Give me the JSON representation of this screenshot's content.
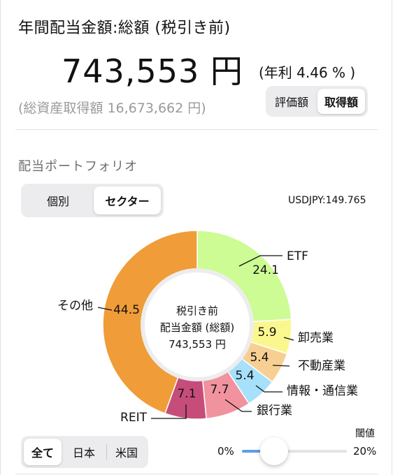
{
  "summary": {
    "title": "年間配当金額:総額 (税引き前)",
    "amount": "743,553 円",
    "yield": "(年利 4.46 % )",
    "total_assets": "(総資産取得額 16,673,662 円)"
  },
  "basis_toggle": {
    "options": [
      "評価額",
      "取得額"
    ],
    "selected": "取得額"
  },
  "portfolio": {
    "heading": "配当ポートフォリオ",
    "view_toggle": {
      "options": [
        "個別",
        "セクター"
      ],
      "selected": "セクター"
    },
    "fx_rate": "USDJPY:149.765",
    "center_label": {
      "line1": "税引き前",
      "line2": "配当金額 (総額)",
      "line3": "743,553 円"
    }
  },
  "chart_data": {
    "type": "pie",
    "donut": true,
    "unit": "%",
    "center_total": "743,553 円",
    "slices": [
      {
        "label": "ETF",
        "value": 24.1,
        "color": "#cdfb94"
      },
      {
        "label": "卸売業",
        "value": 5.9,
        "color": "#fbf78f"
      },
      {
        "label": "不動産業",
        "value": 5.4,
        "color": "#f7cf92"
      },
      {
        "label": "情報・通信業",
        "value": 5.4,
        "color": "#a6e0fb"
      },
      {
        "label": "銀行業",
        "value": 7.7,
        "color": "#f1939e"
      },
      {
        "label": "REIT",
        "value": 7.1,
        "color": "#c64d7a"
      },
      {
        "label": "その他",
        "value": 44.5,
        "color": "#f09c38"
      }
    ]
  },
  "region_filter": {
    "options": [
      "全て",
      "日本",
      "米国"
    ],
    "selected": "全て"
  },
  "threshold": {
    "label": "閾値",
    "min_label": "0%",
    "max_label": "20%",
    "value_fraction": 0.3
  }
}
